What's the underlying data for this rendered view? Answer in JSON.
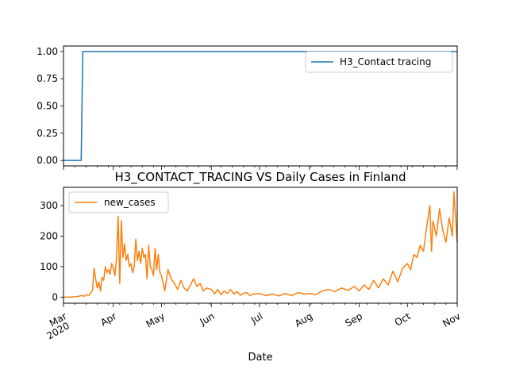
{
  "chart_data": [
    {
      "type": "line",
      "title": "",
      "xlabel": "",
      "ylabel": "",
      "ylim": [
        -0.05,
        1.05
      ],
      "yticks": [
        0.0,
        0.25,
        0.5,
        0.75,
        1.0
      ],
      "ytick_labels": [
        "0.00",
        "0.25",
        "0.50",
        "0.75",
        "1.00"
      ],
      "legend": "top-right",
      "series": [
        {
          "name": "H3_Contact tracing",
          "color": "#1f77b4",
          "points": [
            [
              "2020-03-01",
              0
            ],
            [
              "2020-03-12",
              0
            ],
            [
              "2020-03-13",
              1
            ],
            [
              "2020-11-01",
              1
            ]
          ]
        }
      ]
    },
    {
      "type": "line",
      "title": "H3_CONTACT_TRACING VS Daily Cases in Finland",
      "xlabel": "Date",
      "ylabel": "",
      "ylim": [
        -20,
        360
      ],
      "yticks": [
        0,
        100,
        200,
        300
      ],
      "ytick_labels": [
        "0",
        "100",
        "200",
        "300"
      ],
      "xlim": [
        "2020-03-01",
        "2020-11-01"
      ],
      "xticks": [
        {
          "date": "2020-03-01",
          "label": "Mar",
          "label2": "2020"
        },
        {
          "date": "2020-04-01",
          "label": "Apr"
        },
        {
          "date": "2020-05-01",
          "label": "May"
        },
        {
          "date": "2020-06-01",
          "label": "Jun"
        },
        {
          "date": "2020-07-01",
          "label": "Jul"
        },
        {
          "date": "2020-08-01",
          "label": "Aug"
        },
        {
          "date": "2020-09-01",
          "label": "Sep"
        },
        {
          "date": "2020-10-01",
          "label": "Oct"
        },
        {
          "date": "2020-11-01",
          "label": "Nov"
        }
      ],
      "legend": "top-left",
      "series": [
        {
          "name": "new_cases",
          "color": "#ff7f0e",
          "points": [
            [
              "2020-03-01",
              0
            ],
            [
              "2020-03-05",
              0
            ],
            [
              "2020-03-08",
              1
            ],
            [
              "2020-03-10",
              2
            ],
            [
              "2020-03-12",
              5
            ],
            [
              "2020-03-14",
              3
            ],
            [
              "2020-03-15",
              8
            ],
            [
              "2020-03-17",
              6
            ],
            [
              "2020-03-18",
              15
            ],
            [
              "2020-03-19",
              20
            ],
            [
              "2020-03-20",
              95
            ],
            [
              "2020-03-21",
              60
            ],
            [
              "2020-03-22",
              30
            ],
            [
              "2020-03-23",
              50
            ],
            [
              "2020-03-24",
              20
            ],
            [
              "2020-03-25",
              65
            ],
            [
              "2020-03-26",
              55
            ],
            [
              "2020-03-27",
              100
            ],
            [
              "2020-03-28",
              80
            ],
            [
              "2020-03-29",
              90
            ],
            [
              "2020-03-30",
              75
            ],
            [
              "2020-03-31",
              110
            ],
            [
              "2020-04-01",
              95
            ],
            [
              "2020-04-02",
              70
            ],
            [
              "2020-04-03",
              130
            ],
            [
              "2020-04-04",
              265
            ],
            [
              "2020-04-05",
              45
            ],
            [
              "2020-04-06",
              250
            ],
            [
              "2020-04-07",
              130
            ],
            [
              "2020-04-08",
              175
            ],
            [
              "2020-04-09",
              120
            ],
            [
              "2020-04-10",
              140
            ],
            [
              "2020-04-11",
              100
            ],
            [
              "2020-04-12",
              110
            ],
            [
              "2020-04-13",
              80
            ],
            [
              "2020-04-14",
              100
            ],
            [
              "2020-04-15",
              190
            ],
            [
              "2020-04-16",
              120
            ],
            [
              "2020-04-17",
              150
            ],
            [
              "2020-04-18",
              110
            ],
            [
              "2020-04-19",
              160
            ],
            [
              "2020-04-20",
              130
            ],
            [
              "2020-04-21",
              140
            ],
            [
              "2020-04-22",
              60
            ],
            [
              "2020-04-23",
              170
            ],
            [
              "2020-04-24",
              100
            ],
            [
              "2020-04-25",
              90
            ],
            [
              "2020-04-26",
              70
            ],
            [
              "2020-04-27",
              160
            ],
            [
              "2020-04-28",
              90
            ],
            [
              "2020-04-29",
              140
            ],
            [
              "2020-04-30",
              80
            ],
            [
              "2020-05-01",
              70
            ],
            [
              "2020-05-03",
              20
            ],
            [
              "2020-05-05",
              90
            ],
            [
              "2020-05-07",
              60
            ],
            [
              "2020-05-09",
              45
            ],
            [
              "2020-05-11",
              25
            ],
            [
              "2020-05-13",
              55
            ],
            [
              "2020-05-15",
              30
            ],
            [
              "2020-05-17",
              20
            ],
            [
              "2020-05-19",
              40
            ],
            [
              "2020-05-21",
              60
            ],
            [
              "2020-05-23",
              35
            ],
            [
              "2020-05-25",
              45
            ],
            [
              "2020-05-27",
              20
            ],
            [
              "2020-05-29",
              30
            ],
            [
              "2020-06-01",
              25
            ],
            [
              "2020-06-03",
              10
            ],
            [
              "2020-06-05",
              25
            ],
            [
              "2020-06-07",
              8
            ],
            [
              "2020-06-09",
              20
            ],
            [
              "2020-06-11",
              12
            ],
            [
              "2020-06-13",
              25
            ],
            [
              "2020-06-15",
              10
            ],
            [
              "2020-06-17",
              18
            ],
            [
              "2020-06-19",
              6
            ],
            [
              "2020-06-21",
              12
            ],
            [
              "2020-06-23",
              15
            ],
            [
              "2020-06-25",
              5
            ],
            [
              "2020-06-27",
              10
            ],
            [
              "2020-07-01",
              12
            ],
            [
              "2020-07-05",
              5
            ],
            [
              "2020-07-09",
              10
            ],
            [
              "2020-07-13",
              4
            ],
            [
              "2020-07-17",
              12
            ],
            [
              "2020-07-21",
              5
            ],
            [
              "2020-07-25",
              15
            ],
            [
              "2020-07-29",
              10
            ],
            [
              "2020-08-01",
              12
            ],
            [
              "2020-08-05",
              8
            ],
            [
              "2020-08-09",
              20
            ],
            [
              "2020-08-13",
              25
            ],
            [
              "2020-08-17",
              18
            ],
            [
              "2020-08-21",
              30
            ],
            [
              "2020-08-25",
              22
            ],
            [
              "2020-08-29",
              35
            ],
            [
              "2020-09-01",
              20
            ],
            [
              "2020-09-04",
              40
            ],
            [
              "2020-09-07",
              25
            ],
            [
              "2020-09-10",
              55
            ],
            [
              "2020-09-13",
              30
            ],
            [
              "2020-09-16",
              60
            ],
            [
              "2020-09-19",
              40
            ],
            [
              "2020-09-22",
              85
            ],
            [
              "2020-09-25",
              50
            ],
            [
              "2020-09-28",
              95
            ],
            [
              "2020-10-01",
              110
            ],
            [
              "2020-10-03",
              90
            ],
            [
              "2020-10-05",
              140
            ],
            [
              "2020-10-07",
              130
            ],
            [
              "2020-10-09",
              170
            ],
            [
              "2020-10-11",
              150
            ],
            [
              "2020-10-13",
              230
            ],
            [
              "2020-10-15",
              300
            ],
            [
              "2020-10-16",
              150
            ],
            [
              "2020-10-17",
              250
            ],
            [
              "2020-10-19",
              200
            ],
            [
              "2020-10-21",
              290
            ],
            [
              "2020-10-23",
              220
            ],
            [
              "2020-10-25",
              180
            ],
            [
              "2020-10-27",
              260
            ],
            [
              "2020-10-29",
              200
            ],
            [
              "2020-10-30",
              345
            ],
            [
              "2020-11-01",
              180
            ]
          ]
        }
      ]
    }
  ]
}
